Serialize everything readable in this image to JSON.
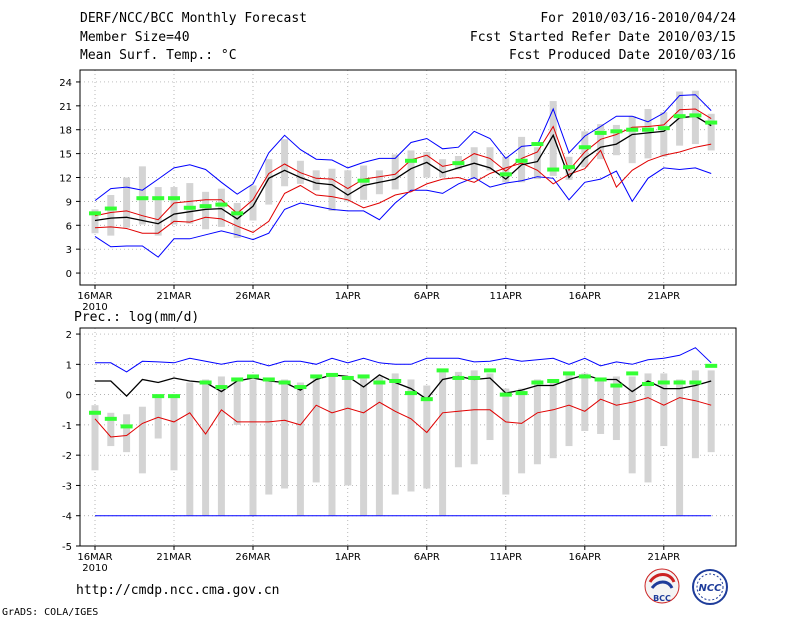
{
  "header": {
    "title": "DERF/NCC/BCC Monthly Forecast",
    "member_size": "Member Size=40",
    "variable": "Mean Surf. Temp.: °C",
    "forecast_range": "For 2010/03/16-2010/04/24",
    "started_refer": "Fcst Started Refer Date 2010/03/15",
    "produced": "Fcst Produced Date 2010/03/16"
  },
  "footer": {
    "url": "http://cmdp.ncc.cma.gov.cn",
    "grads": "GrADS: COLA/IGES",
    "logo_bcc": "BCC",
    "logo_ncc": "NCC"
  },
  "colors": {
    "max": "#0000ff",
    "mean": "#000000",
    "spread": "#e00000",
    "obs": "#33ff33",
    "bar": "#d4d4d4",
    "grid": "#999999"
  },
  "chart_data": [
    {
      "type": "line",
      "title": "Mean Surf. Temp.: °C",
      "x_tick_labels": [
        "16MAR",
        "21MAR",
        "26MAR",
        "1APR",
        "6APR",
        "11APR",
        "16APR",
        "21APR"
      ],
      "x_year_label": "2010",
      "x_tick_days": [
        0,
        5,
        10,
        16,
        21,
        26,
        31,
        36
      ],
      "ylim": [
        -1.5,
        25.5
      ],
      "yticks": [
        0,
        3,
        6,
        9,
        12,
        15,
        18,
        21,
        24
      ],
      "grid": true,
      "days": 40,
      "series": [
        {
          "name": "max",
          "values": [
            4.6,
            3.3,
            3.4,
            3.4,
            2.0,
            4.3,
            4.3,
            4.8,
            5.3,
            4.8,
            4.2,
            5.0,
            8.0,
            8.8,
            8.4,
            8.0,
            7.8,
            7.8,
            6.7,
            8.8,
            10.4,
            10.4,
            10.0,
            11.2,
            12.0,
            10.8,
            11.3,
            11.6,
            12.1,
            11.9,
            9.2,
            11.4,
            11.8,
            12.8,
            9.0,
            11.9,
            13.2,
            13.0,
            13.2,
            12.5
          ]
        },
        {
          "name": "mean_spread",
          "values": [
            5.7,
            5.8,
            5.6,
            5.0,
            5.0,
            6.5,
            6.4,
            7.0,
            6.8,
            5.9,
            5.1,
            6.5,
            10.0,
            11.0,
            9.8,
            9.6,
            9.2,
            8.2,
            8.8,
            9.8,
            10.2,
            11.2,
            11.8,
            12.0,
            11.4,
            12.5,
            13.2,
            13.8,
            12.9,
            11.2,
            12.4,
            13.1,
            15.4,
            10.8,
            12.9,
            14.1,
            14.8,
            15.2,
            15.8,
            16.2
          ]
        },
        {
          "name": "mean",
          "values": [
            6.6,
            6.9,
            7.0,
            6.6,
            6.2,
            7.4,
            7.7,
            8.0,
            8.1,
            6.8,
            8.4,
            11.9,
            12.9,
            12.0,
            11.3,
            11.1,
            9.8,
            11.0,
            11.4,
            11.8,
            13.1,
            13.9,
            12.6,
            13.2,
            13.8,
            13.2,
            11.8,
            13.6,
            14.0,
            17.3,
            12.0,
            14.4,
            15.8,
            16.2,
            17.4,
            17.6,
            17.8,
            19.5,
            19.7,
            18.5
          ]
        },
        {
          "name": "mean_upper",
          "values": [
            7.2,
            7.6,
            7.8,
            7.2,
            6.7,
            8.8,
            9.0,
            9.2,
            9.2,
            7.5,
            9.2,
            12.5,
            13.7,
            12.6,
            11.9,
            11.8,
            10.6,
            11.8,
            12.1,
            12.4,
            14.2,
            14.8,
            13.4,
            13.8,
            15.0,
            14.4,
            12.8,
            14.4,
            15.2,
            18.4,
            12.9,
            15.2,
            16.8,
            17.4,
            18.3,
            18.4,
            18.6,
            20.5,
            20.6,
            19.4
          ]
        },
        {
          "name": "max_upper",
          "values": [
            9.1,
            10.6,
            10.8,
            10.4,
            11.8,
            13.2,
            13.6,
            13.0,
            11.4,
            9.9,
            11.2,
            15.1,
            17.3,
            15.5,
            14.3,
            14.2,
            13.2,
            13.9,
            14.4,
            14.4,
            16.4,
            16.9,
            15.6,
            15.8,
            17.8,
            16.9,
            14.4,
            15.9,
            16.1,
            20.6,
            15.1,
            17.2,
            18.4,
            19.7,
            19.7,
            19.0,
            20.1,
            22.3,
            22.4,
            20.4
          ]
        }
      ],
      "observed": [
        7.5,
        8.1,
        null,
        9.4,
        9.4,
        9.4,
        8.2,
        8.4,
        8.6,
        7.5,
        null,
        null,
        null,
        null,
        null,
        null,
        null,
        11.6,
        null,
        null,
        14.1,
        null,
        null,
        13.8,
        null,
        null,
        12.4,
        14.1,
        16.2,
        13.0,
        13.3,
        15.8,
        17.6,
        17.8,
        18.0,
        18.0,
        18.2,
        19.7,
        19.8,
        18.9
      ],
      "box_low": [
        5.0,
        4.7,
        5.7,
        6.1,
        4.7,
        6.1,
        6.2,
        5.5,
        5.8,
        4.4,
        6.6,
        8.6,
        10.9,
        11.2,
        10.4,
        7.8,
        9.0,
        9.2,
        9.9,
        10.5,
        10.3,
        12.0,
        12.0,
        13.0,
        11.8,
        12.9,
        11.4,
        11.4,
        11.8,
        12.2,
        11.7,
        13.3,
        14.3,
        14.8,
        13.8,
        14.4,
        14.6,
        16.0,
        16.2,
        15.4
      ],
      "box_high": [
        8.0,
        9.8,
        12.0,
        13.4,
        10.8,
        10.8,
        11.3,
        10.2,
        10.6,
        8.8,
        11.0,
        14.3,
        16.8,
        14.1,
        12.9,
        13.1,
        12.9,
        13.5,
        12.9,
        14.9,
        15.4,
        15.2,
        14.3,
        14.7,
        15.8,
        15.8,
        14.6,
        17.1,
        15.8,
        21.6,
        14.6,
        17.8,
        18.7,
        18.6,
        19.7,
        20.6,
        20.2,
        22.8,
        22.9,
        20.0
      ]
    },
    {
      "type": "line",
      "title": "Prec.: log(mm/d)",
      "x_tick_labels": [
        "16MAR",
        "21MAR",
        "26MAR",
        "1APR",
        "6APR",
        "11APR",
        "16APR",
        "21APR"
      ],
      "x_year_label": "2010",
      "x_tick_days": [
        0,
        5,
        10,
        16,
        21,
        26,
        31,
        36
      ],
      "ylim": [
        -5,
        2.2
      ],
      "yticks": [
        -5,
        -4,
        -3,
        -2,
        -1,
        0,
        1,
        2
      ],
      "grid": true,
      "days": 40,
      "series": [
        {
          "name": "max",
          "values": [
            1.05,
            1.05,
            0.75,
            1.1,
            1.08,
            1.05,
            1.2,
            1.1,
            1.0,
            1.1,
            1.1,
            0.95,
            1.1,
            1.1,
            1.0,
            1.2,
            1.05,
            1.2,
            1.05,
            1.0,
            1.0,
            1.2,
            1.2,
            1.2,
            1.08,
            1.1,
            1.2,
            1.1,
            1.15,
            1.2,
            1.0,
            1.2,
            0.95,
            1.08,
            1.0,
            1.15,
            1.2,
            1.3,
            1.55,
            1.05
          ]
        },
        {
          "name": "mean",
          "values": [
            0.45,
            0.45,
            -0.05,
            0.5,
            0.4,
            0.55,
            0.45,
            0.4,
            0.1,
            0.45,
            0.55,
            0.45,
            0.4,
            0.15,
            0.5,
            0.65,
            0.6,
            0.25,
            0.65,
            0.4,
            0.2,
            -0.15,
            0.5,
            0.6,
            0.5,
            0.55,
            0.05,
            0.15,
            0.3,
            0.3,
            0.5,
            0.65,
            0.5,
            0.5,
            0.1,
            0.45,
            0.2,
            0.2,
            0.3,
            0.45
          ]
        },
        {
          "name": "spread",
          "values": [
            -0.8,
            -1.4,
            -1.35,
            -0.95,
            -0.75,
            -0.9,
            -0.6,
            -1.3,
            -0.5,
            -0.9,
            -0.9,
            -0.9,
            -0.85,
            -1.0,
            -0.35,
            -0.6,
            -0.45,
            -0.6,
            -0.25,
            -0.55,
            -0.8,
            -1.25,
            -0.6,
            -0.55,
            -0.5,
            -0.5,
            -0.9,
            -0.95,
            -0.6,
            -0.5,
            -0.35,
            -0.55,
            -0.15,
            -0.35,
            -0.25,
            -0.1,
            -0.35,
            -0.1,
            -0.2,
            -0.35
          ]
        },
        {
          "name": "floor",
          "values": [
            -4,
            -4,
            -4,
            -4,
            -4,
            -4,
            -4,
            -4,
            -4,
            -4,
            -4,
            -4,
            -4,
            -4,
            -4,
            -4,
            -4,
            -4,
            -4,
            -4,
            -4,
            -4,
            -4,
            -4,
            -4,
            -4,
            -4,
            -4,
            -4,
            -4,
            -4,
            -4,
            -4,
            -4,
            -4,
            -4,
            -4,
            -4,
            -4,
            -4
          ]
        }
      ],
      "observed": [
        -0.6,
        -0.8,
        -1.05,
        null,
        -0.05,
        -0.05,
        null,
        0.4,
        0.25,
        0.5,
        0.6,
        0.5,
        0.4,
        0.25,
        0.6,
        0.65,
        0.55,
        0.6,
        0.4,
        0.45,
        0.05,
        -0.15,
        0.8,
        0.55,
        0.55,
        0.8,
        0.0,
        0.05,
        0.4,
        0.45,
        0.7,
        0.6,
        0.5,
        0.3,
        0.7,
        0.35,
        0.4,
        0.4,
        0.4,
        0.95
      ],
      "box_low": [
        -2.5,
        -1.7,
        -1.9,
        -2.6,
        -1.45,
        -2.5,
        -4,
        -4,
        -4,
        -1.0,
        -4,
        -3.3,
        -3.1,
        -4,
        -2.9,
        -4,
        -3.0,
        -4,
        -4,
        -3.3,
        -3.2,
        -3.1,
        -4,
        -2.4,
        -2.3,
        -1.5,
        -3.3,
        -2.6,
        -2.3,
        -2.1,
        -1.7,
        -1.2,
        -1.3,
        -1.5,
        -2.6,
        -2.9,
        -1.7,
        -4,
        -2.1,
        -1.9
      ],
      "box_high": [
        -0.35,
        -0.6,
        -0.65,
        -0.4,
        -0.05,
        0.0,
        0.4,
        0.5,
        0.6,
        0.5,
        0.5,
        0.55,
        0.5,
        0.4,
        0.6,
        0.6,
        0.6,
        0.6,
        0.6,
        0.7,
        0.5,
        0.3,
        0.8,
        0.75,
        0.8,
        0.7,
        0.2,
        0.2,
        0.5,
        0.5,
        0.7,
        0.7,
        0.5,
        0.6,
        0.6,
        0.7,
        0.7,
        0.5,
        0.8,
        0.8
      ]
    }
  ]
}
